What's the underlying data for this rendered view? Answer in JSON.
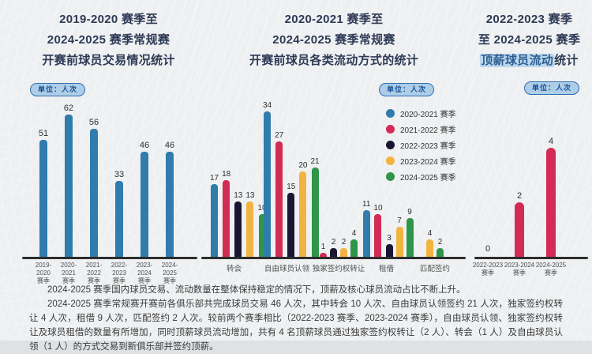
{
  "page": {
    "unit_label": "单位：人次"
  },
  "panels": {
    "left_title": [
      "2019-2020 赛季至",
      "2024-2025 赛季常规赛",
      "开赛前球员交易情况统计"
    ],
    "middle_title": [
      "2020-2021 赛季至",
      "2024-2025 赛季常规赛",
      "开赛前球员各类流动方式的统计"
    ],
    "right_title": [
      "2022-2023 赛季",
      "至 2024-2025 赛季"
    ],
    "right_title_highlight": "顶薪球员流动",
    "right_title_tail": "统计"
  },
  "colors": {
    "blue": "#2F7CAD",
    "crimson": "#D22B55",
    "navy": "#1A1632",
    "yellow": "#F2B340",
    "green": "#2E9549",
    "title_navy": "#2E3A55",
    "highlight_bg": "#BCD8EE"
  },
  "chart_data": [
    {
      "id": "trade-count",
      "type": "bar",
      "title": "2019-2020 赛季至 2024-2025 赛季常规赛开赛前球员交易情况统计",
      "unit": "人次",
      "categories": [
        "2019-2020 赛季",
        "2020-2021 赛季",
        "2021-2022 赛季",
        "2022-2023 赛季",
        "2023-2024 赛季",
        "2024-2025 赛季"
      ],
      "values": [
        51,
        62,
        56,
        33,
        46,
        46
      ],
      "bar_color": "#2F7CAD",
      "ylim": [
        0,
        65
      ],
      "grid": false,
      "value_labels": true
    },
    {
      "id": "movement-types",
      "type": "bar",
      "grouped": true,
      "title": "2020-2021 赛季至 2024-2025 赛季常规赛开赛前球员各类流动方式的统计",
      "unit": "人次",
      "categories": [
        "转会",
        "自由球员认领",
        "独家签约权转让",
        "租借",
        "匹配签约"
      ],
      "series": [
        {
          "name": "2020-2021 赛季",
          "color": "#2F7CAD",
          "values": [
            17,
            34,
            0,
            11,
            0
          ]
        },
        {
          "name": "2021-2022 赛季",
          "color": "#D22B55",
          "values": [
            18,
            27,
            1,
            10,
            0
          ]
        },
        {
          "name": "2022-2023 赛季",
          "color": "#1A1632",
          "values": [
            13,
            15,
            2,
            3,
            0
          ]
        },
        {
          "name": "2023-2024 赛季",
          "color": "#F2B340",
          "values": [
            13,
            20,
            2,
            7,
            4
          ]
        },
        {
          "name": "2024-2025 赛季",
          "color": "#2E9549",
          "values": [
            10,
            21,
            4,
            9,
            2
          ]
        }
      ],
      "ylim": [
        0,
        37
      ],
      "grid": false,
      "legend_position": "right",
      "zero_rendering": "hidden",
      "value_labels": true
    },
    {
      "id": "top-salary-movement",
      "type": "bar",
      "title": "2022-2023 赛季至 2024-2025 赛季顶薪球员流动统计",
      "unit": "人次",
      "categories": [
        "2022-2023 赛季",
        "2023-2024 赛季",
        "2024-2025 赛季"
      ],
      "values": [
        0,
        2,
        4
      ],
      "bar_color": "#D22B55",
      "ylim": [
        0,
        4.5
      ],
      "grid": false,
      "zero_rendering": "label-only",
      "value_labels": true
    }
  ],
  "footer": {
    "paragraphs": [
      "2024-2025 赛季国内球员交易、流动数量在整体保持稳定的情况下，顶薪及核心球员流动占比不断上升。",
      "2024-2025 赛季常规赛开赛前各俱乐部共完成球员交易 46 人次，其中转会 10 人次、自由球员认领签约 21 人次，独家签约权转让 4 人次，租借 9 人次，匹配签约 2 人次。较前两个赛季相比（2022-2023 赛季、2023-2024 赛季），自由球员认领、独家签约权转让及球员租借的数量有所增加，同时顶薪球员流动增加，共有 4 名顶薪球员通过独家签约权转让（2 人）、转会（1 人）及自由球员认领（1 人）的方式交易到新俱乐部并签约顶薪。"
    ]
  }
}
